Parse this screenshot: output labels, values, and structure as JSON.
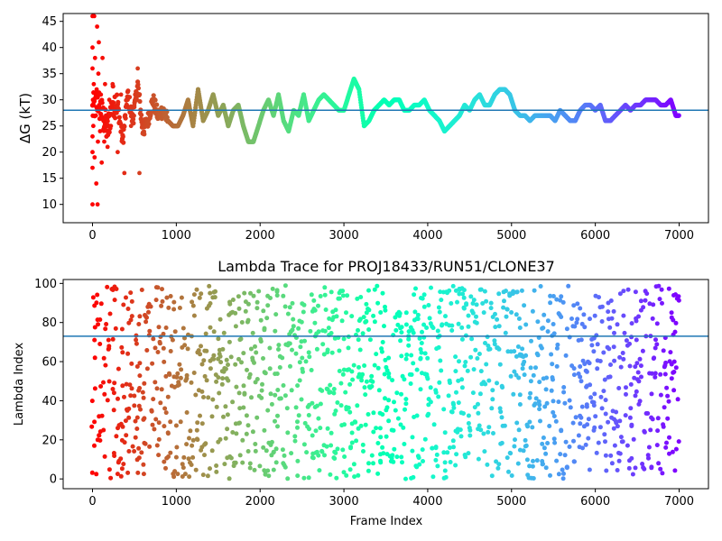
{
  "chart_data": [
    {
      "type": "scatter",
      "title": "",
      "xlabel": "",
      "ylabel": "ΔG (kT)",
      "xlim": [
        -350,
        7350
      ],
      "ylim": [
        6.5,
        46.5
      ],
      "xticks": [
        0,
        1000,
        2000,
        3000,
        4000,
        5000,
        6000,
        7000
      ],
      "yticks": [
        10,
        15,
        20,
        25,
        30,
        35,
        40,
        45
      ],
      "hline": 28,
      "hline_color": "#1f77b4",
      "colormap": "rainbow",
      "color_direction": "red at frame 0 → purple at frame 7000",
      "grid": false,
      "series_trace": {
        "x": [
          0,
          60,
          120,
          180,
          240,
          300,
          360,
          420,
          480,
          540,
          600,
          660,
          720,
          780,
          840,
          900,
          960,
          1020,
          1080,
          1140,
          1200,
          1260,
          1320,
          1380,
          1440,
          1500,
          1560,
          1620,
          1680,
          1740,
          1800,
          1860,
          1920,
          1980,
          2040,
          2100,
          2160,
          2220,
          2280,
          2340,
          2400,
          2460,
          2520,
          2580,
          2640,
          2700,
          2760,
          2820,
          2880,
          2940,
          3000,
          3060,
          3120,
          3180,
          3240,
          3300,
          3360,
          3420,
          3480,
          3540,
          3600,
          3660,
          3720,
          3780,
          3840,
          3900,
          3960,
          4020,
          4080,
          4140,
          4200,
          4260,
          4320,
          4380,
          4440,
          4500,
          4560,
          4620,
          4680,
          4740,
          4800,
          4860,
          4920,
          4980,
          5040,
          5100,
          5160,
          5220,
          5280,
          5340,
          5400,
          5460,
          5520,
          5580,
          5640,
          5700,
          5760,
          5820,
          5880,
          5940,
          6000,
          6060,
          6120,
          6180,
          6240,
          6300,
          6360,
          6420,
          6480,
          6540,
          6600,
          6660,
          6720,
          6780,
          6840,
          6900,
          6960,
          7000
        ],
        "y": [
          28,
          30,
          27,
          24,
          30,
          29,
          22,
          31,
          26,
          33,
          24,
          26,
          30,
          27,
          28,
          26,
          25,
          25,
          27,
          30,
          25,
          32,
          26,
          28,
          31,
          27,
          29,
          25,
          28,
          29,
          25,
          22,
          22,
          25,
          28,
          30,
          27,
          31,
          26,
          24,
          28,
          27,
          31,
          26,
          28,
          30,
          31,
          30,
          29,
          28,
          28,
          31,
          34,
          32,
          25,
          26,
          28,
          29,
          30,
          29,
          30,
          30,
          28,
          28,
          29,
          29,
          30,
          28,
          27,
          26,
          24,
          25,
          26,
          27,
          29,
          28,
          30,
          31,
          29,
          29,
          31,
          32,
          32,
          31,
          28,
          27,
          27,
          26,
          27,
          27,
          27,
          27,
          26,
          28,
          27,
          26,
          26,
          28,
          29,
          29,
          28,
          29,
          26,
          26,
          27,
          28,
          29,
          28,
          29,
          29,
          30,
          30,
          30,
          29,
          29,
          30,
          27,
          27
        ]
      },
      "early_scatter": {
        "x": [
          0,
          0,
          0,
          0,
          0,
          0,
          0,
          5,
          10,
          15,
          20,
          25,
          30,
          40,
          45,
          50,
          55,
          60,
          65,
          70,
          75,
          80,
          90,
          100,
          110,
          120,
          130,
          140,
          150,
          160,
          180,
          200,
          220,
          240,
          260,
          300,
          340,
          380,
          420,
          460,
          500,
          540,
          560
        ],
        "y": [
          10,
          17,
          20,
          23,
          36,
          40,
          46,
          30,
          25,
          33,
          46,
          19,
          38,
          27,
          14,
          32,
          44,
          10,
          22,
          35,
          41,
          29,
          24,
          31,
          18,
          38,
          26,
          22,
          33,
          27,
          21,
          30,
          25,
          33,
          28,
          20,
          31,
          16,
          30,
          25,
          29,
          36,
          16
        ]
      }
    },
    {
      "type": "scatter",
      "title": "Lambda Trace for PROJ18433/RUN51/CLONE37",
      "xlabel": "Frame Index",
      "ylabel": "Lambda Index",
      "xlim": [
        -350,
        7350
      ],
      "ylim": [
        -5,
        102
      ],
      "xticks": [
        0,
        1000,
        2000,
        3000,
        4000,
        5000,
        6000,
        7000
      ],
      "yticks": [
        0,
        20,
        40,
        60,
        80,
        100
      ],
      "hline": 73,
      "hline_color": "#1f77b4",
      "colormap": "rainbow",
      "color_direction": "red at frame 0 → purple at frame 7000",
      "grid": false,
      "lambda_range": [
        0,
        99
      ],
      "frame_range": [
        0,
        7000
      ],
      "description_of_points": "dense vertical streaks of lambda values spanning 0–99 across all frames"
    }
  ]
}
